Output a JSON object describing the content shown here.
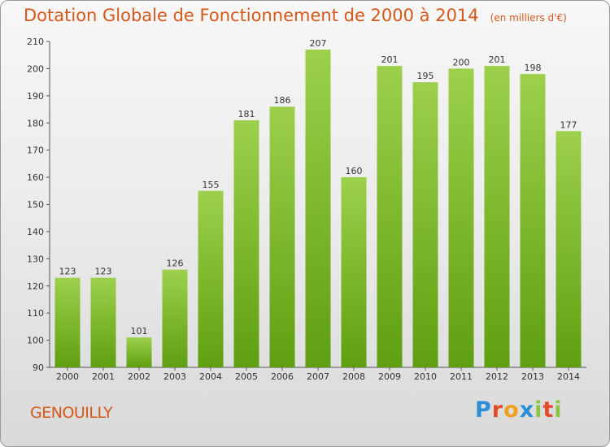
{
  "title": "Dotation Globale de Fonctionnement de 2000 à 2014",
  "subtitle": "(en milliers d'€)",
  "commune": "GENOUILLY",
  "logo": "Proxiti",
  "colors": {
    "title": "#d4581a",
    "bar_top": "#9dd04c",
    "bar_bottom": "#5f9f10",
    "axis": "#333333"
  },
  "chart_data": {
    "type": "bar",
    "categories": [
      "2000",
      "2001",
      "2002",
      "2003",
      "2004",
      "2005",
      "2006",
      "2007",
      "2008",
      "2009",
      "2010",
      "2011",
      "2012",
      "2013",
      "2014"
    ],
    "values": [
      123,
      123,
      101,
      126,
      155,
      181,
      186,
      207,
      160,
      201,
      195,
      200,
      201,
      198,
      177
    ],
    "ylim": [
      90,
      210
    ],
    "yticks": [
      90,
      100,
      110,
      120,
      130,
      140,
      150,
      160,
      170,
      180,
      190,
      200,
      210
    ],
    "grid": false,
    "xlabel": "",
    "ylabel": ""
  }
}
